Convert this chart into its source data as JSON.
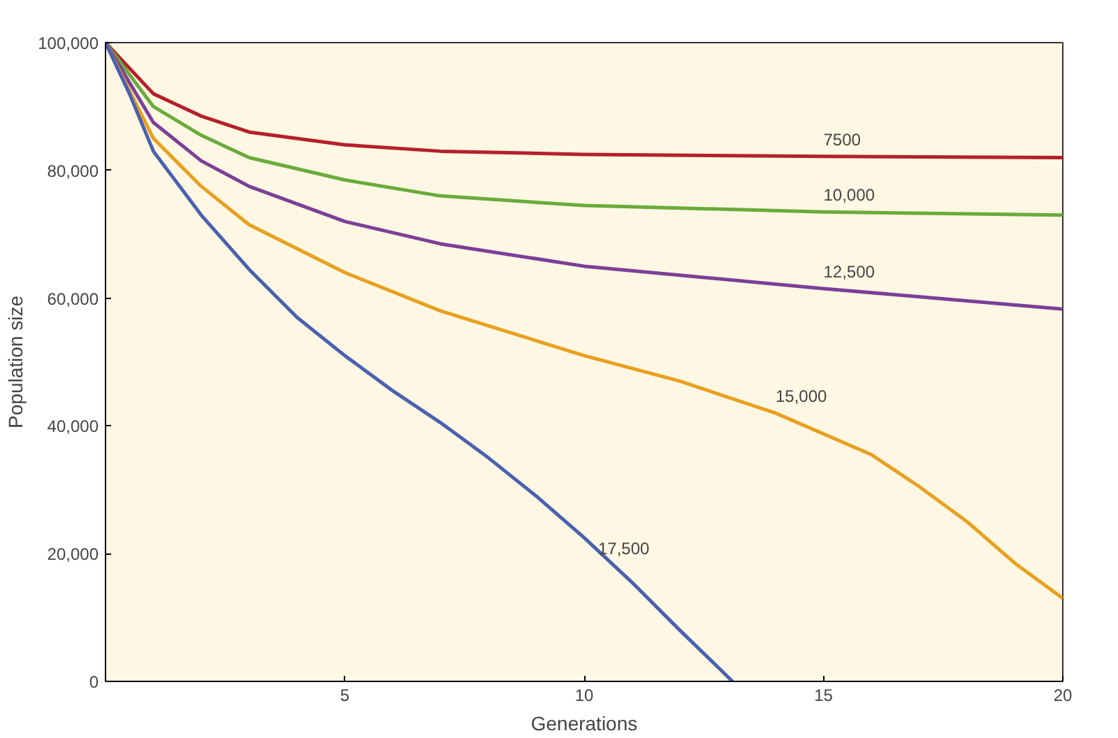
{
  "chart_data": {
    "type": "line",
    "xlabel": "Generations",
    "ylabel": "Population size",
    "xlim": [
      0,
      20
    ],
    "ylim": [
      0,
      100000
    ],
    "xticks": [
      5,
      10,
      15,
      20
    ],
    "yticks": [
      {
        "value": 0,
        "label": "0"
      },
      {
        "value": 20000,
        "label": "20,000"
      },
      {
        "value": 40000,
        "label": "40,000"
      },
      {
        "value": 60000,
        "label": "60,000"
      },
      {
        "value": 80000,
        "label": "80,000"
      },
      {
        "value": 100000,
        "label": "100,000"
      }
    ],
    "grid": false,
    "marker": "none",
    "line_style": "solid",
    "series": [
      {
        "name": "7500",
        "color": "#b5202a",
        "x": [
          0,
          1,
          2,
          3,
          5,
          7,
          10,
          15,
          20
        ],
        "values": [
          100000,
          92000,
          88500,
          86000,
          84000,
          83000,
          82500,
          82200,
          82000
        ]
      },
      {
        "name": "10,000",
        "color": "#6aab3c",
        "x": [
          0,
          1,
          2,
          3,
          5,
          7,
          10,
          15,
          20
        ],
        "values": [
          100000,
          90000,
          85500,
          82000,
          78500,
          76000,
          74500,
          73500,
          73000
        ]
      },
      {
        "name": "12,500",
        "color": "#7b3f98",
        "x": [
          0,
          1,
          2,
          3,
          5,
          7,
          10,
          15,
          20
        ],
        "values": [
          100000,
          87500,
          81500,
          77500,
          72000,
          68500,
          65000,
          61500,
          58300
        ]
      },
      {
        "name": "15,000",
        "color": "#e8a020",
        "x": [
          0,
          1,
          2,
          3,
          5,
          7,
          10,
          12,
          14,
          16,
          17,
          18,
          19,
          20
        ],
        "values": [
          100000,
          85000,
          77500,
          71500,
          64000,
          58000,
          51000,
          47000,
          42000,
          35500,
          30500,
          25000,
          18500,
          13000
        ]
      },
      {
        "name": "17,500",
        "color": "#4a60b0",
        "x": [
          0,
          0.5,
          1,
          2,
          3,
          4,
          5,
          6,
          7,
          8,
          9,
          10,
          11,
          12,
          13.1
        ],
        "values": [
          100000,
          92000,
          83000,
          73000,
          64500,
          57000,
          51000,
          45500,
          40500,
          35000,
          29000,
          22500,
          15500,
          8000,
          0
        ]
      }
    ]
  }
}
